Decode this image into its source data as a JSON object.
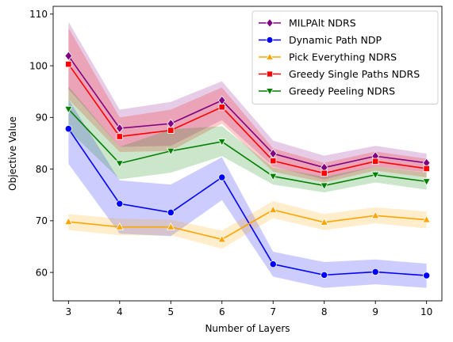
{
  "chart_data": {
    "type": "line",
    "xlabel": "Number of Layers",
    "ylabel": "Objective Value",
    "x": [
      3,
      4,
      5,
      6,
      7,
      8,
      9,
      10
    ],
    "xlim": [
      2.7,
      10.3
    ],
    "ylim": [
      54.5,
      111.5
    ],
    "xticks": [
      3,
      4,
      5,
      6,
      7,
      8,
      9,
      10
    ],
    "yticks": [
      60,
      70,
      80,
      90,
      100,
      110
    ],
    "grid": false,
    "legend_position": "top-right",
    "series": [
      {
        "name": "MILPAlt NDRS",
        "color": "#800080",
        "marker": "diamond",
        "values": [
          101.9,
          87.9,
          88.8,
          93.3,
          83.0,
          80.3,
          82.5,
          81.2
        ],
        "band_low": [
          95.5,
          84.3,
          84.5,
          89.5,
          80.5,
          78.0,
          80.5,
          79.4
        ],
        "band_high": [
          108.5,
          91.5,
          93.0,
          97.0,
          85.5,
          82.6,
          84.5,
          83.0
        ]
      },
      {
        "name": "Dynamic Path NDP",
        "color": "#0000ff",
        "marker": "circle",
        "values": [
          87.8,
          73.3,
          71.6,
          78.4,
          61.6,
          59.5,
          60.1,
          59.4
        ],
        "band_low": [
          81.0,
          67.5,
          67.0,
          74.0,
          59.2,
          57.0,
          57.7,
          57.0
        ],
        "band_high": [
          93.5,
          77.8,
          77.0,
          82.3,
          64.0,
          62.0,
          62.5,
          61.7
        ]
      },
      {
        "name": "Pick Everything NDRS",
        "color": "#ffa500",
        "marker": "triangle-up",
        "values": [
          69.8,
          68.8,
          68.8,
          66.4,
          72.1,
          69.7,
          71.0,
          70.2
        ],
        "band_low": [
          68.2,
          67.2,
          67.2,
          64.6,
          70.5,
          68.2,
          69.5,
          68.5
        ],
        "band_high": [
          71.3,
          70.4,
          70.2,
          68.1,
          73.8,
          71.3,
          72.6,
          71.8
        ]
      },
      {
        "name": "Greedy Single Paths NDRS",
        "color": "#ff0000",
        "marker": "square",
        "values": [
          100.3,
          86.3,
          87.5,
          92.0,
          81.6,
          79.2,
          81.5,
          80.1
        ],
        "band_low": [
          93.5,
          83.3,
          83.5,
          88.8,
          79.5,
          77.4,
          79.7,
          78.4
        ],
        "band_high": [
          107.3,
          90.0,
          91.5,
          95.8,
          84.0,
          81.2,
          83.4,
          82.0
        ]
      },
      {
        "name": "Greedy Peeling NDRS",
        "color": "#008000",
        "marker": "triangle-down",
        "values": [
          91.6,
          81.1,
          83.5,
          85.3,
          78.6,
          76.8,
          78.9,
          77.6
        ],
        "band_low": [
          87.5,
          78.0,
          79.3,
          82.5,
          77.0,
          75.5,
          77.4,
          76.0
        ],
        "band_high": [
          96.0,
          84.3,
          87.7,
          88.3,
          80.3,
          78.5,
          80.5,
          79.3
        ]
      }
    ]
  }
}
